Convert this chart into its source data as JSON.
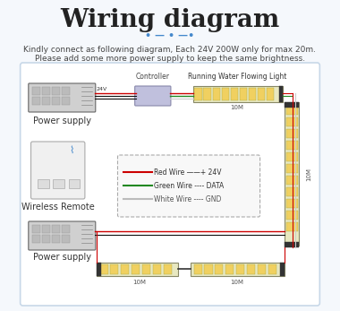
{
  "title": "Wiring diagram",
  "subtitle_dots": "• — • —•",
  "description_line1": "Kindly connect as following diagram, Each 24V 200W only for max 20m.",
  "description_line2": "Please add some more power supply to keep the same brightness.",
  "bg_color": "#f5f8fc",
  "box_bg": "#ffffff",
  "box_border": "#c8d8e8",
  "wire_red": "#cc0000",
  "wire_green": "#228822",
  "wire_white": "#aaaaaa",
  "wire_black": "#222222",
  "led_yellow": "#f0d060",
  "led_bg": "#e8e8e8",
  "psu_color": "#888888",
  "controller_color": "#aaaacc",
  "legend_labels": [
    "Red Wire ——+ 24V",
    "Green Wire ---- DATA",
    "White Wire ---- GND"
  ],
  "label_ps_top": "Power supply",
  "label_ps_bot": "Power supply",
  "label_controller": "Controller",
  "label_running_light": "Running Water Flowing Light",
  "label_wireless": "Wireless Remote",
  "label_10m_top": "10M",
  "label_10m_right": "10M",
  "label_10m_bot1": "10M",
  "label_10m_bot2": "10M"
}
